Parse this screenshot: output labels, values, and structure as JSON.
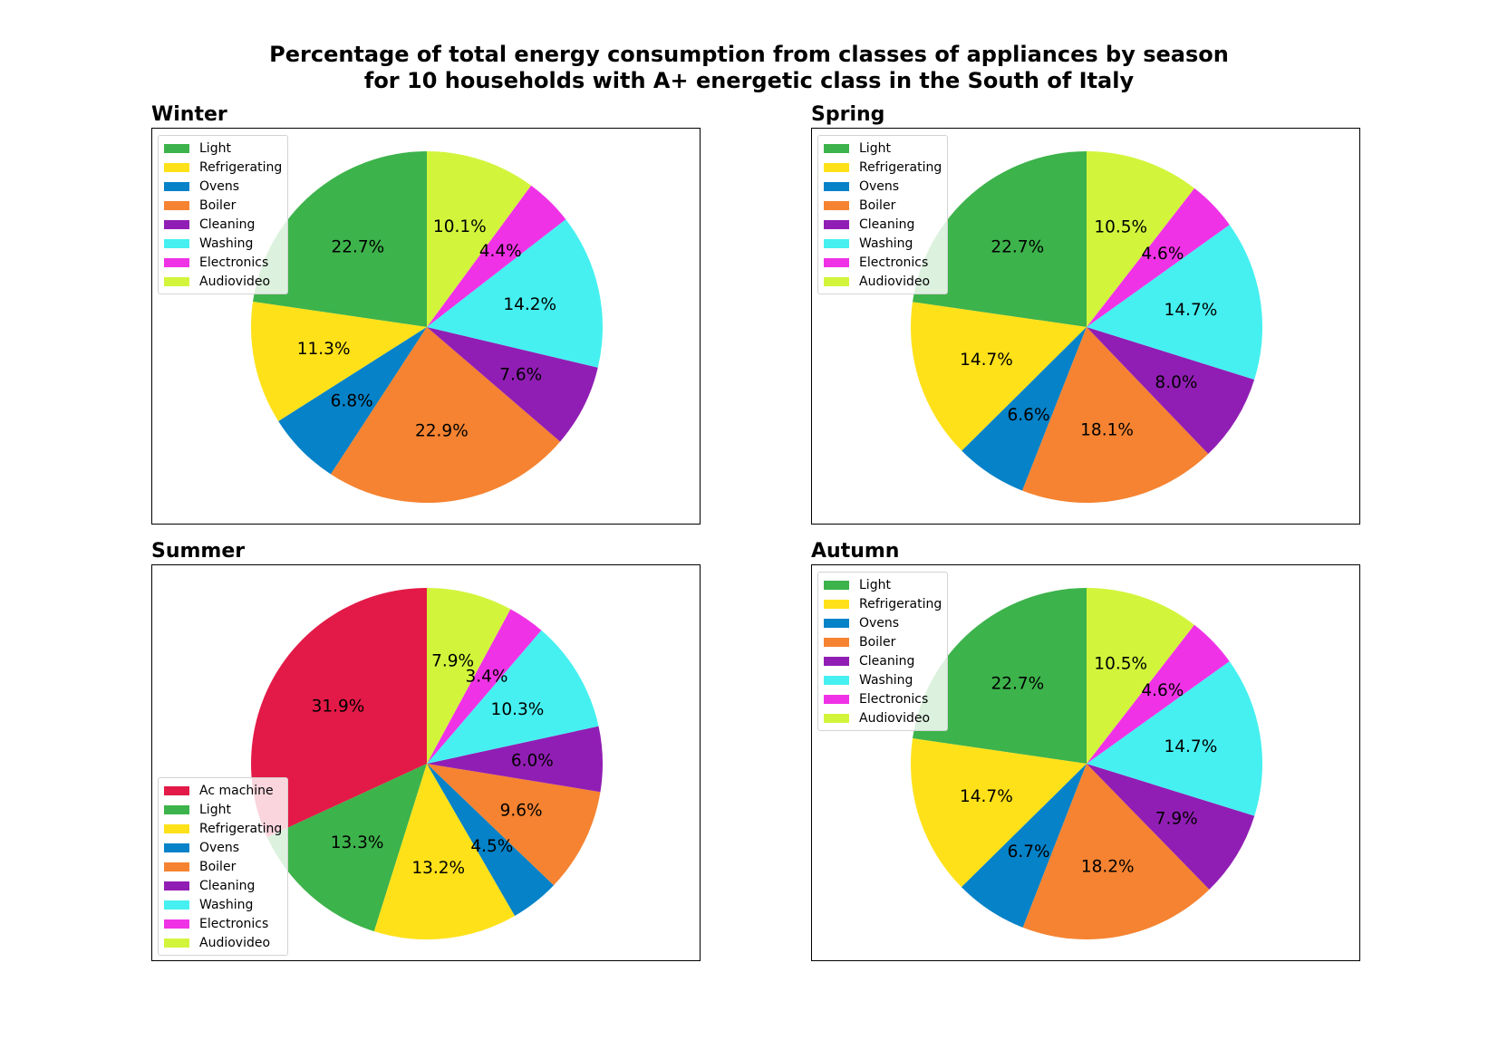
{
  "suptitle": {
    "line1": "Percentage of total energy consumption from classes of appliances by season",
    "line2": "for 10 households with A+ energetic class in the South of Italy"
  },
  "colors": {
    "Ac machine": "#e31a47",
    "Light": "#3db34b",
    "Refrigerating": "#ffe11a",
    "Ovens": "#0582c8",
    "Boiler": "#f58331",
    "Cleaning": "#911eb4",
    "Washing": "#46f0f0",
    "Electronics": "#f032e6",
    "Audiovideo": "#d2f53c"
  },
  "chart_data": [
    {
      "type": "pie",
      "title": "Winter",
      "categories": [
        "Light",
        "Refrigerating",
        "Ovens",
        "Boiler",
        "Cleaning",
        "Washing",
        "Electronics",
        "Audiovideo"
      ],
      "values": [
        22.7,
        11.3,
        6.8,
        22.9,
        7.6,
        14.2,
        4.4,
        10.1
      ],
      "labels": [
        "22.7%",
        "11.3%",
        "6.8%",
        "22.9%",
        "7.6%",
        "14.2%",
        "4.4%",
        "10.1%"
      ],
      "legend": "top-left"
    },
    {
      "type": "pie",
      "title": "Spring",
      "categories": [
        "Light",
        "Refrigerating",
        "Ovens",
        "Boiler",
        "Cleaning",
        "Washing",
        "Electronics",
        "Audiovideo"
      ],
      "values": [
        22.7,
        14.7,
        6.6,
        18.1,
        8.0,
        14.7,
        4.6,
        10.5
      ],
      "labels": [
        "22.7%",
        "14.7%",
        "6.6%",
        "18.1%",
        "8.0%",
        "14.7%",
        "4.6%",
        "10.5%"
      ],
      "legend": "top-left"
    },
    {
      "type": "pie",
      "title": "Summer",
      "categories": [
        "Ac machine",
        "Light",
        "Refrigerating",
        "Ovens",
        "Boiler",
        "Cleaning",
        "Washing",
        "Electronics",
        "Audiovideo"
      ],
      "values": [
        31.9,
        13.3,
        13.2,
        4.5,
        9.6,
        6.0,
        10.3,
        3.4,
        7.9
      ],
      "labels": [
        "31.9%",
        "13.3%",
        "13.2%",
        "4.5%",
        "9.6%",
        "6.0%",
        "10.3%",
        "3.4%",
        "7.9%"
      ],
      "legend": "lower-left"
    },
    {
      "type": "pie",
      "title": "Autumn",
      "categories": [
        "Light",
        "Refrigerating",
        "Ovens",
        "Boiler",
        "Cleaning",
        "Washing",
        "Electronics",
        "Audiovideo"
      ],
      "values": [
        22.7,
        14.7,
        6.7,
        18.2,
        7.9,
        14.7,
        4.6,
        10.5
      ],
      "labels": [
        "22.7%",
        "14.7%",
        "6.7%",
        "18.2%",
        "7.9%",
        "14.7%",
        "4.6%",
        "10.5%"
      ],
      "legend": "top-left"
    }
  ]
}
